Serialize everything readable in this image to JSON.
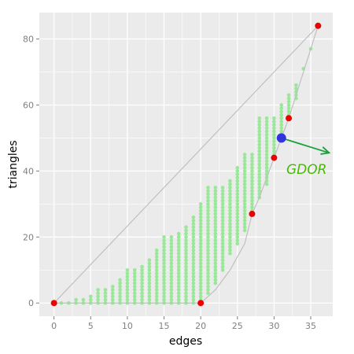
{
  "chart_data": {
    "type": "scatter",
    "title": "",
    "xlabel": "edges",
    "ylabel": "triangles",
    "xlim": [
      -2,
      38
    ],
    "ylim": [
      -4,
      88
    ],
    "x_ticks": [
      0,
      5,
      10,
      15,
      20,
      25,
      30,
      35
    ],
    "y_ticks": [
      0,
      20,
      40,
      60,
      80
    ],
    "x_tick_labels": [
      "0",
      "5",
      "10",
      "15",
      "20",
      "25",
      "30",
      "35"
    ],
    "y_tick_labels": [
      "0",
      "20",
      "40",
      "60",
      "80"
    ],
    "grid": true,
    "legend": "none",
    "point_cloud_columns": [
      {
        "x": 0,
        "y_min": 0,
        "y_max": 0
      },
      {
        "x": 1,
        "y_min": 0,
        "y_max": 0
      },
      {
        "x": 2,
        "y_min": 0,
        "y_max": 0
      },
      {
        "x": 3,
        "y_min": 0,
        "y_max": 1
      },
      {
        "x": 4,
        "y_min": 0,
        "y_max": 1
      },
      {
        "x": 5,
        "y_min": 0,
        "y_max": 2
      },
      {
        "x": 6,
        "y_min": 0,
        "y_max": 4
      },
      {
        "x": 7,
        "y_min": 0,
        "y_max": 4
      },
      {
        "x": 8,
        "y_min": 0,
        "y_max": 5
      },
      {
        "x": 9,
        "y_min": 0,
        "y_max": 7
      },
      {
        "x": 10,
        "y_min": 0,
        "y_max": 10
      },
      {
        "x": 11,
        "y_min": 0,
        "y_max": 10
      },
      {
        "x": 12,
        "y_min": 0,
        "y_max": 11
      },
      {
        "x": 13,
        "y_min": 0,
        "y_max": 13
      },
      {
        "x": 14,
        "y_min": 0,
        "y_max": 16
      },
      {
        "x": 15,
        "y_min": 0,
        "y_max": 20
      },
      {
        "x": 16,
        "y_min": 0,
        "y_max": 20
      },
      {
        "x": 17,
        "y_min": 0,
        "y_max": 21
      },
      {
        "x": 18,
        "y_min": 0,
        "y_max": 23
      },
      {
        "x": 19,
        "y_min": 0,
        "y_max": 26
      },
      {
        "x": 20,
        "y_min": 1,
        "y_max": 30
      },
      {
        "x": 21,
        "y_min": 3,
        "y_max": 35
      },
      {
        "x": 22,
        "y_min": 6,
        "y_max": 35
      },
      {
        "x": 23,
        "y_min": 10,
        "y_max": 35
      },
      {
        "x": 24,
        "y_min": 15,
        "y_max": 37
      },
      {
        "x": 25,
        "y_min": 18,
        "y_max": 41
      },
      {
        "x": 26,
        "y_min": 22,
        "y_max": 45
      },
      {
        "x": 27,
        "y_min": 27,
        "y_max": 45
      },
      {
        "x": 28,
        "y_min": 32,
        "y_max": 56
      },
      {
        "x": 29,
        "y_min": 36,
        "y_max": 56
      },
      {
        "x": 30,
        "y_min": 44,
        "y_max": 56
      },
      {
        "x": 31,
        "y_min": 51,
        "y_max": 60
      },
      {
        "x": 32,
        "y_min": 57,
        "y_max": 63
      },
      {
        "x": 33,
        "y_min": 62,
        "y_max": 66
      },
      {
        "x": 34,
        "y_min": 71,
        "y_max": 71
      },
      {
        "x": 35,
        "y_min": 77,
        "y_max": 77
      },
      {
        "x": 36,
        "y_min": 84,
        "y_max": 84
      }
    ],
    "upper_line": [
      [
        0,
        0
      ],
      [
        36,
        84
      ]
    ],
    "lower_curve": [
      [
        20,
        0
      ],
      [
        22,
        4
      ],
      [
        24,
        10
      ],
      [
        26,
        18
      ],
      [
        27,
        27
      ],
      [
        28,
        32
      ],
      [
        30,
        44
      ],
      [
        32,
        56
      ],
      [
        34,
        70
      ],
      [
        36,
        84
      ]
    ],
    "red_points": [
      [
        0,
        0
      ],
      [
        20,
        0
      ],
      [
        27,
        27
      ],
      [
        30,
        44
      ],
      [
        32,
        56
      ],
      [
        36,
        84
      ]
    ],
    "blue_point": [
      31,
      50
    ],
    "arrow": {
      "from": [
        31,
        50
      ],
      "to": [
        37.5,
        45.5
      ]
    },
    "annotation": {
      "text": "GDOR",
      "x": 31.6,
      "y": 40.4
    },
    "colors": {
      "panel_bg": "#ebebeb",
      "grid": "#ffffff",
      "points": "#98e898",
      "line": "#c0c0c0",
      "red": "#ee0000",
      "blue": "#3333dd",
      "arrow": "#1aa13a",
      "annotation": "#44bb00"
    }
  }
}
